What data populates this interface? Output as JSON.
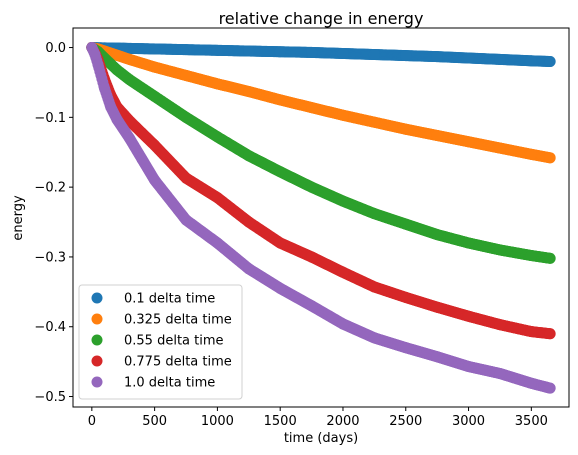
{
  "chart_data": {
    "type": "scatter",
    "title": "relative change in energy",
    "xlabel": "time (days)",
    "ylabel": "energy",
    "xlim": [
      -150,
      3800
    ],
    "ylim": [
      -0.515,
      0.028
    ],
    "xticks": [
      0,
      500,
      1000,
      1500,
      2000,
      2500,
      3000,
      3500
    ],
    "xtick_labels": [
      "0",
      "500",
      "1000",
      "1500",
      "2000",
      "2500",
      "3000",
      "3500"
    ],
    "yticks": [
      0.0,
      -0.1,
      -0.2,
      -0.3,
      -0.4,
      -0.5
    ],
    "ytick_labels": [
      "0.0",
      "−0.1",
      "−0.2",
      "−0.3",
      "−0.4",
      "−0.5"
    ],
    "grid": false,
    "legend_position": "lower-left",
    "series": [
      {
        "name": "0.1 delta time",
        "color": "#1f77b4",
        "x": [
          0,
          100,
          250,
          500,
          750,
          1000,
          1250,
          1500,
          1750,
          2000,
          2250,
          2500,
          2750,
          3000,
          3250,
          3500,
          3650
        ],
        "y": [
          0.0,
          -0.0005,
          -0.001,
          -0.002,
          -0.003,
          -0.004,
          -0.005,
          -0.006,
          -0.007,
          -0.0085,
          -0.01,
          -0.0115,
          -0.013,
          -0.015,
          -0.017,
          -0.019,
          -0.02
        ]
      },
      {
        "name": "0.325 delta time",
        "color": "#ff7f0e",
        "x": [
          0,
          50,
          100,
          200,
          300,
          500,
          750,
          1000,
          1250,
          1500,
          1750,
          2000,
          2250,
          2500,
          2750,
          3000,
          3250,
          3500,
          3650
        ],
        "y": [
          0.0,
          -0.002,
          -0.005,
          -0.011,
          -0.017,
          -0.028,
          -0.04,
          -0.052,
          -0.063,
          -0.075,
          -0.086,
          -0.097,
          -0.107,
          -0.117,
          -0.126,
          -0.135,
          -0.144,
          -0.153,
          -0.158
        ]
      },
      {
        "name": "0.55 delta time",
        "color": "#2ca02c",
        "x": [
          0,
          50,
          100,
          200,
          300,
          500,
          750,
          1000,
          1250,
          1500,
          1750,
          2000,
          2250,
          2500,
          2750,
          3000,
          3250,
          3500,
          3650
        ],
        "y": [
          0.0,
          -0.006,
          -0.015,
          -0.032,
          -0.046,
          -0.07,
          -0.1,
          -0.128,
          -0.155,
          -0.178,
          -0.2,
          -0.22,
          -0.238,
          -0.253,
          -0.268,
          -0.28,
          -0.29,
          -0.298,
          -0.302
        ]
      },
      {
        "name": "0.775 delta time",
        "color": "#d62728",
        "x": [
          0,
          25,
          50,
          100,
          150,
          200,
          300,
          500,
          750,
          1000,
          1250,
          1500,
          1750,
          2000,
          2250,
          2500,
          2750,
          3000,
          3250,
          3500,
          3650
        ],
        "y": [
          0.0,
          -0.008,
          -0.018,
          -0.045,
          -0.068,
          -0.085,
          -0.105,
          -0.14,
          -0.187,
          -0.215,
          -0.25,
          -0.28,
          -0.3,
          -0.322,
          -0.343,
          -0.358,
          -0.372,
          -0.385,
          -0.397,
          -0.407,
          -0.41
        ]
      },
      {
        "name": "1.0 delta time",
        "color": "#9467bd",
        "x": [
          0,
          25,
          50,
          100,
          150,
          200,
          300,
          400,
          500,
          750,
          1000,
          1250,
          1500,
          1750,
          2000,
          2250,
          2500,
          2750,
          3000,
          3250,
          3500,
          3650
        ],
        "y": [
          0.0,
          -0.01,
          -0.025,
          -0.058,
          -0.085,
          -0.103,
          -0.13,
          -0.16,
          -0.19,
          -0.247,
          -0.28,
          -0.317,
          -0.345,
          -0.37,
          -0.396,
          -0.416,
          -0.43,
          -0.443,
          -0.457,
          -0.467,
          -0.481,
          -0.488
        ]
      }
    ]
  }
}
